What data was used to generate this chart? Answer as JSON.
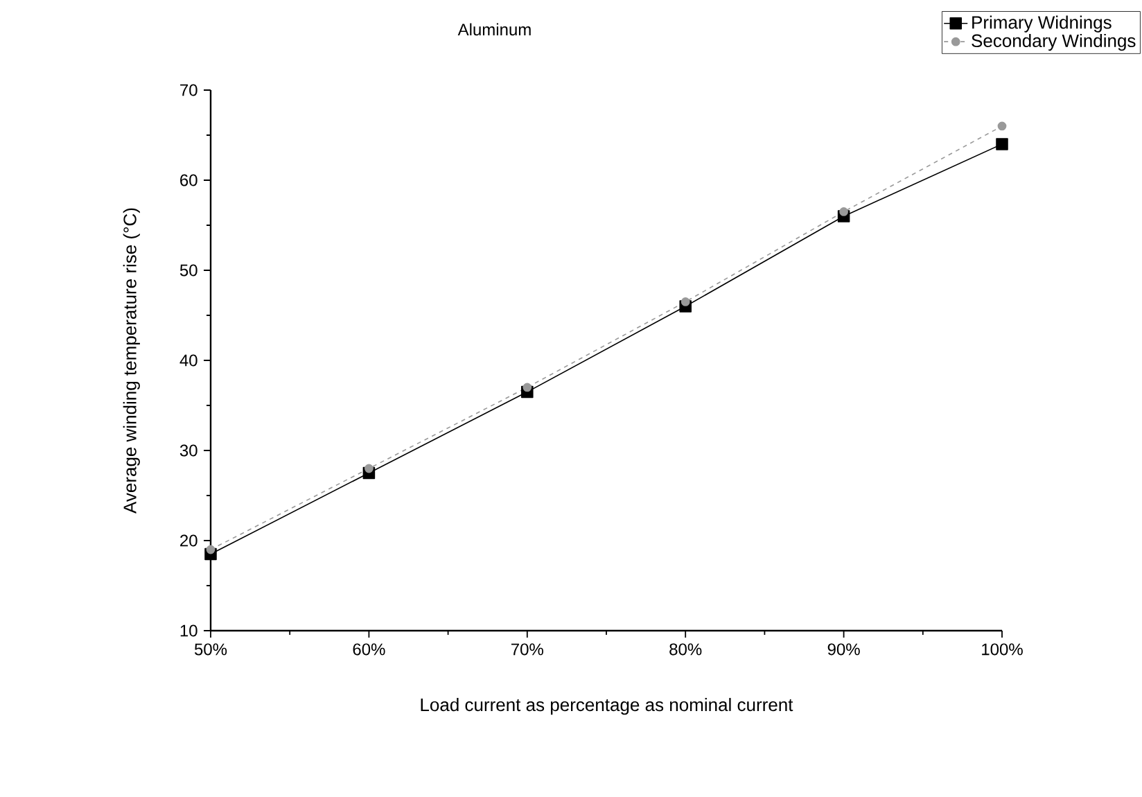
{
  "chart_data": {
    "type": "line",
    "title": "Aluminum",
    "xlabel": "Load current as percentage as nominal current",
    "ylabel": "Average winding temperature rise (°C)",
    "x": [
      50,
      60,
      70,
      80,
      90,
      100
    ],
    "series": [
      {
        "name": "Primary Widnings",
        "color": "#000000",
        "marker": "square",
        "line_style": "solid",
        "values": [
          18.5,
          27.5,
          36.5,
          46,
          56,
          64
        ]
      },
      {
        "name": "Secondary Windings",
        "color": "#999999",
        "marker": "circle",
        "line_style": "dashed",
        "values": [
          19,
          28,
          37,
          46.5,
          56.5,
          66
        ]
      }
    ],
    "xlim": [
      50,
      100
    ],
    "ylim": [
      10,
      70
    ],
    "xticks": [
      {
        "value": 50,
        "label": "50%"
      },
      {
        "value": 60,
        "label": "60%"
      },
      {
        "value": 70,
        "label": "70%"
      },
      {
        "value": 80,
        "label": "80%"
      },
      {
        "value": 90,
        "label": "90%"
      },
      {
        "value": 100,
        "label": "100%"
      }
    ],
    "yticks": [
      10,
      20,
      30,
      40,
      50,
      60,
      70
    ],
    "legend": "top right",
    "grid": false
  }
}
